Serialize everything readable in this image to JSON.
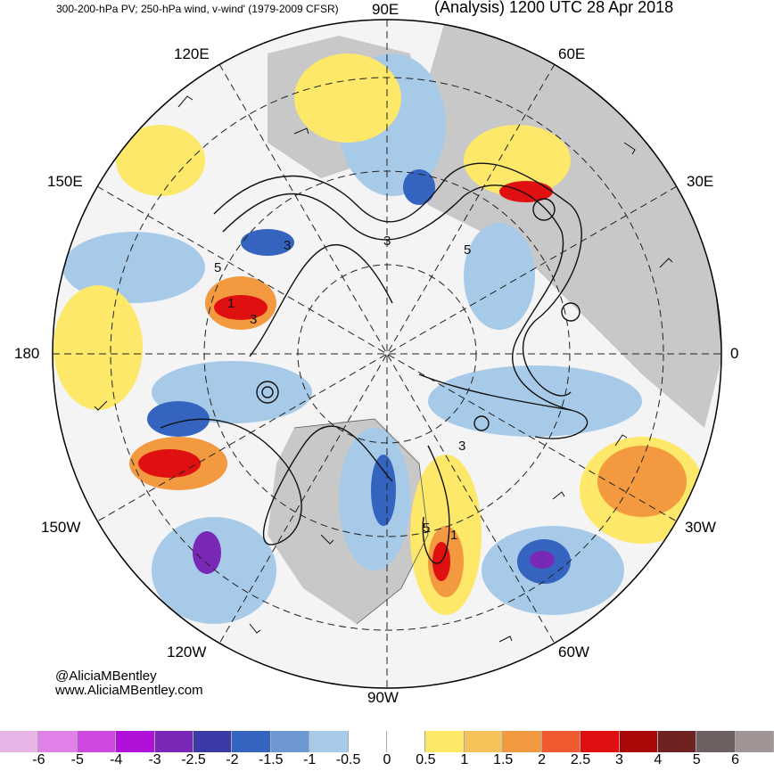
{
  "header": {
    "left_title": "300-200-hPa PV; 250-hPa wind, v-wind' (1979-2009 CFSR)",
    "right_title": "(Analysis) 1200 UTC 28 Apr 2018"
  },
  "map_labels": {
    "lon_90e": "90E",
    "lon_60e": "60E",
    "lon_120e": "120E",
    "lon_150e": "150E",
    "lon_30e": "30E",
    "lon_180": "180",
    "lon_0": "0",
    "lon_150w": "150W",
    "lon_30w": "30W",
    "lon_120w": "120W",
    "lon_60w": "60W",
    "lon_90w": "90W"
  },
  "contour_labels": [
    "3",
    "5",
    "1",
    "3",
    "5",
    "3",
    "3",
    "5",
    "1"
  ],
  "credit": {
    "handle": "@AliciaMBentley",
    "site": "www.AliciaMBentley.com"
  },
  "colorbar": {
    "colors": [
      "#e8b4e8",
      "#e080e8",
      "#d046e0",
      "#b010d8",
      "#7a28b8",
      "#3c3aa8",
      "#3464c0",
      "#6e98d4",
      "#a6cae8",
      "#ffffff",
      "#ffffff",
      "#fde86a",
      "#f6c35a",
      "#f39a40",
      "#f05a30",
      "#e01010",
      "#a80808",
      "#6e2222",
      "#6e6060",
      "#a09494"
    ],
    "ticks": [
      "-6",
      "-5",
      "-4",
      "-3",
      "-2.5",
      "-2",
      "-1.5",
      "-1",
      "-0.5",
      "0",
      "0.5",
      "1",
      "1.5",
      "2",
      "2.5",
      "3",
      "4",
      "5",
      "6"
    ]
  }
}
